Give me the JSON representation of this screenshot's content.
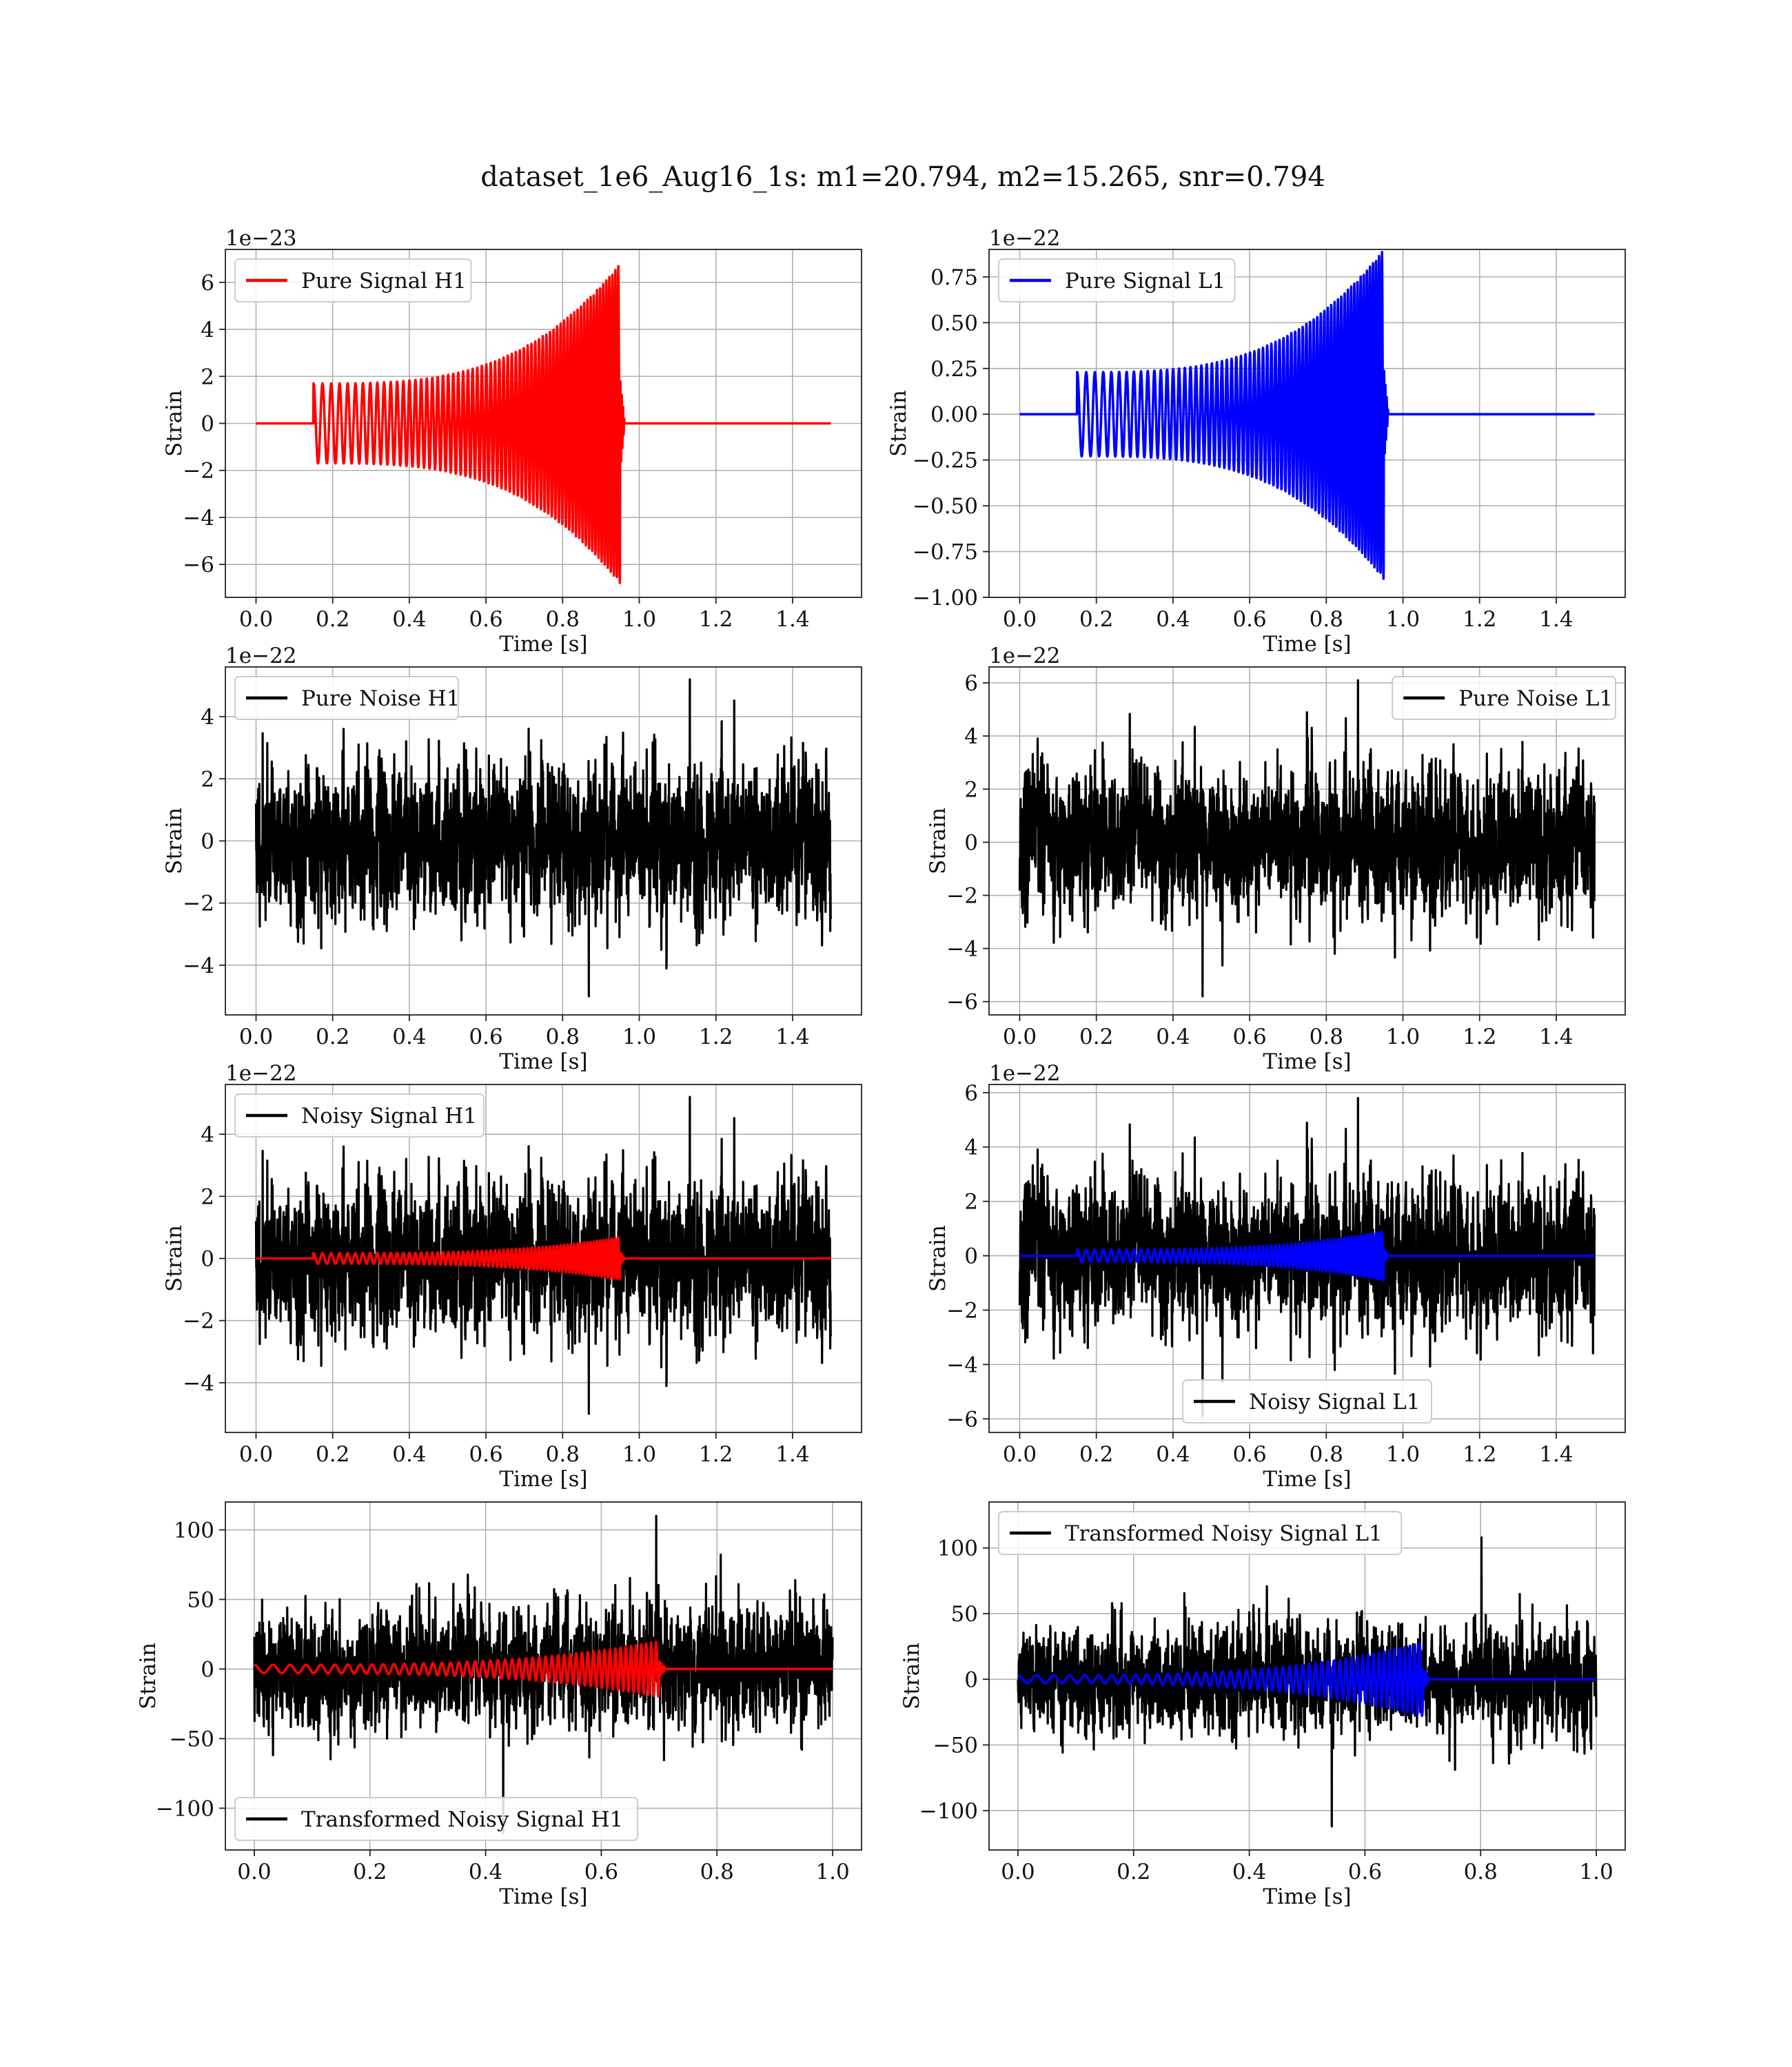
{
  "figure_title": "dataset_1e6_Aug16_1s: m1=20.794, m2=15.265, snr=0.794",
  "chart_data": [
    {
      "type": "line",
      "title": "",
      "legend": {
        "location": "upper left"
      },
      "offset_label": "1e−23",
      "xlabel": "Time [s]",
      "ylabel": "Strain",
      "xlim": [
        -0.08,
        1.58
      ],
      "ylim": [
        -7.4,
        7.4
      ],
      "xticks": [
        "0.0",
        "0.2",
        "0.4",
        "0.6",
        "0.8",
        "1.0",
        "1.2",
        "1.4"
      ],
      "xtick_values": [
        0.0,
        0.2,
        0.4,
        0.6,
        0.8,
        1.0,
        1.2,
        1.4
      ],
      "yticks": [
        "−6",
        "−4",
        "−2",
        "0",
        "2",
        "4",
        "6"
      ],
      "ytick_values": [
        -6,
        -4,
        -2,
        0,
        2,
        4,
        6
      ],
      "series": [
        {
          "name": "Pure Signal H1",
          "kind": "chirp",
          "color": "#ff0000",
          "x_range": [
            0.0,
            1.5
          ],
          "t_start": 0.15,
          "t_merge": 0.95,
          "amp_start": 1.7,
          "amp_peak": 6.8,
          "cycles_start": 42,
          "cycles_end": 130,
          "y_start": 1.7,
          "y_end_min": -6.8,
          "zero_after_merge": 0.0
        }
      ]
    },
    {
      "type": "line",
      "title": "",
      "legend": {
        "location": "upper left"
      },
      "offset_label": "1e−22",
      "xlabel": "Time [s]",
      "ylabel": "Strain",
      "xlim": [
        -0.08,
        1.58
      ],
      "ylim": [
        -1.0,
        0.9
      ],
      "xticks": [
        "0.0",
        "0.2",
        "0.4",
        "0.6",
        "0.8",
        "1.0",
        "1.2",
        "1.4"
      ],
      "xtick_values": [
        0.0,
        0.2,
        0.4,
        0.6,
        0.8,
        1.0,
        1.2,
        1.4
      ],
      "yticks": [
        "−1.00",
        "−0.75",
        "−0.50",
        "−0.25",
        "0.00",
        "0.25",
        "0.50",
        "0.75"
      ],
      "ytick_values": [
        -1.0,
        -0.75,
        -0.5,
        -0.25,
        0.0,
        0.25,
        0.5,
        0.75
      ],
      "series": [
        {
          "name": "Pure Signal L1",
          "kind": "chirp",
          "color": "#0000ff",
          "x_range": [
            0.0,
            1.5
          ],
          "t_start": 0.15,
          "t_merge": 0.95,
          "amp_start": 0.23,
          "amp_peak": 0.9,
          "cycles_start": 42,
          "cycles_end": 130,
          "y_start": -0.22,
          "y_end_min": -0.92
        }
      ]
    },
    {
      "type": "line",
      "title": "",
      "legend": {
        "location": "upper left"
      },
      "offset_label": "1e−22",
      "xlabel": "Time [s]",
      "ylabel": "Strain",
      "xlim": [
        -0.08,
        1.58
      ],
      "ylim": [
        -5.6,
        5.6
      ],
      "xticks": [
        "0.0",
        "0.2",
        "0.4",
        "0.6",
        "0.8",
        "1.0",
        "1.2",
        "1.4"
      ],
      "xtick_values": [
        0.0,
        0.2,
        0.4,
        0.6,
        0.8,
        1.0,
        1.2,
        1.4
      ],
      "yticks": [
        "−4",
        "−2",
        "0",
        "2",
        "4"
      ],
      "ytick_values": [
        -4,
        -2,
        0,
        2,
        4
      ],
      "series": [
        {
          "name": "Pure Noise H1",
          "kind": "noise",
          "color": "#000000",
          "x_range": [
            0.0,
            1.5
          ],
          "sigma": 1.5,
          "peak_max": 5.2,
          "peak_min": -5.0,
          "seed": 11
        }
      ]
    },
    {
      "type": "line",
      "title": "",
      "legend": {
        "location": "upper right"
      },
      "offset_label": "1e−22",
      "xlabel": "Time [s]",
      "ylabel": "Strain",
      "xlim": [
        -0.08,
        1.58
      ],
      "ylim": [
        -6.5,
        6.6
      ],
      "xticks": [
        "0.0",
        "0.2",
        "0.4",
        "0.6",
        "0.8",
        "1.0",
        "1.2",
        "1.4"
      ],
      "xtick_values": [
        0.0,
        0.2,
        0.4,
        0.6,
        0.8,
        1.0,
        1.2,
        1.4
      ],
      "yticks": [
        "−6",
        "−4",
        "−2",
        "0",
        "2",
        "4",
        "6"
      ],
      "ytick_values": [
        -6,
        -4,
        -2,
        0,
        2,
        4,
        6
      ],
      "series": [
        {
          "name": "Pure Noise L1",
          "kind": "noise",
          "color": "#000000",
          "x_range": [
            0.0,
            1.5
          ],
          "sigma": 1.6,
          "peak_max": 6.1,
          "peak_min": -5.8,
          "seed": 23
        }
      ]
    },
    {
      "type": "line",
      "title": "",
      "legend": {
        "location": "upper left"
      },
      "offset_label": "1e−22",
      "xlabel": "Time [s]",
      "ylabel": "Strain",
      "xlim": [
        -0.08,
        1.58
      ],
      "ylim": [
        -5.6,
        5.6
      ],
      "xticks": [
        "0.0",
        "0.2",
        "0.4",
        "0.6",
        "0.8",
        "1.0",
        "1.2",
        "1.4"
      ],
      "xtick_values": [
        0.0,
        0.2,
        0.4,
        0.6,
        0.8,
        1.0,
        1.2,
        1.4
      ],
      "yticks": [
        "−4",
        "−2",
        "0",
        "2",
        "4"
      ],
      "ytick_values": [
        -4,
        -2,
        0,
        2,
        4
      ],
      "series": [
        {
          "name": "Noisy Signal H1",
          "kind": "noise",
          "color": "#000000",
          "x_range": [
            0.0,
            1.5
          ],
          "sigma": 1.5,
          "peak_max": 5.2,
          "peak_min": -5.0,
          "seed": 11
        },
        {
          "name": "",
          "kind": "chirp",
          "color": "#ff0000",
          "x_range": [
            0.0,
            1.5
          ],
          "t_start": 0.15,
          "t_merge": 0.95,
          "amp_start": 0.17,
          "amp_peak": 0.68,
          "cycles_start": 42,
          "cycles_end": 130
        }
      ]
    },
    {
      "type": "line",
      "title": "",
      "legend": {
        "location": "lower center"
      },
      "offset_label": "1e−22",
      "xlabel": "Time [s]",
      "ylabel": "Strain",
      "xlim": [
        -0.08,
        1.58
      ],
      "ylim": [
        -6.5,
        6.3
      ],
      "xticks": [
        "0.0",
        "0.2",
        "0.4",
        "0.6",
        "0.8",
        "1.0",
        "1.2",
        "1.4"
      ],
      "xtick_values": [
        0.0,
        0.2,
        0.4,
        0.6,
        0.8,
        1.0,
        1.2,
        1.4
      ],
      "yticks": [
        "−6",
        "−4",
        "−2",
        "0",
        "2",
        "4",
        "6"
      ],
      "ytick_values": [
        -6,
        -4,
        -2,
        0,
        2,
        4,
        6
      ],
      "series": [
        {
          "name": "Noisy Signal L1",
          "kind": "noise",
          "color": "#000000",
          "x_range": [
            0.0,
            1.5
          ],
          "sigma": 1.6,
          "peak_max": 5.8,
          "peak_min": -5.9,
          "seed": 23
        },
        {
          "name": "",
          "kind": "chirp",
          "color": "#0000ff",
          "x_range": [
            0.0,
            1.5
          ],
          "t_start": 0.15,
          "t_merge": 0.95,
          "amp_start": 0.23,
          "amp_peak": 0.9,
          "cycles_start": 42,
          "cycles_end": 130
        }
      ]
    },
    {
      "type": "line",
      "title": "",
      "legend": {
        "location": "lower left"
      },
      "offset_label": "",
      "xlabel": "Time [s]",
      "ylabel": "Strain",
      "xlim": [
        -0.05,
        1.05
      ],
      "ylim": [
        -130,
        120
      ],
      "xticks": [
        "0.0",
        "0.2",
        "0.4",
        "0.6",
        "0.8",
        "1.0"
      ],
      "xtick_values": [
        0.0,
        0.2,
        0.4,
        0.6,
        0.8,
        1.0
      ],
      "yticks": [
        "−100",
        "−50",
        "0",
        "50",
        "100"
      ],
      "ytick_values": [
        -100,
        -50,
        0,
        50,
        100
      ],
      "series": [
        {
          "name": "Transformed Noisy Signal H1",
          "kind": "noise",
          "color": "#000000",
          "x_range": [
            0.0,
            1.0
          ],
          "sigma": 25,
          "peak_max": 110,
          "peak_min": -118,
          "seed": 37
        },
        {
          "name": "",
          "kind": "chirp",
          "color": "#ff0000",
          "x_range": [
            0.0,
            1.0
          ],
          "t_start": 0.0,
          "t_merge": 0.7,
          "amp_start": 3,
          "amp_peak": 20,
          "cycles_start": 30,
          "cycles_end": 120
        }
      ]
    },
    {
      "type": "line",
      "title": "",
      "legend": {
        "location": "upper left"
      },
      "offset_label": "",
      "xlabel": "Time [s]",
      "ylabel": "Strain",
      "xlim": [
        -0.05,
        1.05
      ],
      "ylim": [
        -130,
        135
      ],
      "xticks": [
        "0.0",
        "0.2",
        "0.4",
        "0.6",
        "0.8",
        "1.0"
      ],
      "xtick_values": [
        0.0,
        0.2,
        0.4,
        0.6,
        0.8,
        1.0
      ],
      "yticks": [
        "−100",
        "−50",
        "0",
        "50",
        "100"
      ],
      "ytick_values": [
        -100,
        -50,
        0,
        50,
        100
      ],
      "series": [
        {
          "name": "Transformed Noisy Signal L1",
          "kind": "noise",
          "color": "#000000",
          "x_range": [
            0.0,
            1.0
          ],
          "sigma": 24,
          "peak_max": 108,
          "peak_min": -112,
          "seed": 51
        },
        {
          "name": "",
          "kind": "chirp",
          "color": "#0000ff",
          "x_range": [
            0.0,
            1.0
          ],
          "t_start": 0.0,
          "t_merge": 0.7,
          "amp_start": 3,
          "amp_peak": 28,
          "cycles_start": 30,
          "cycles_end": 120
        }
      ]
    }
  ]
}
